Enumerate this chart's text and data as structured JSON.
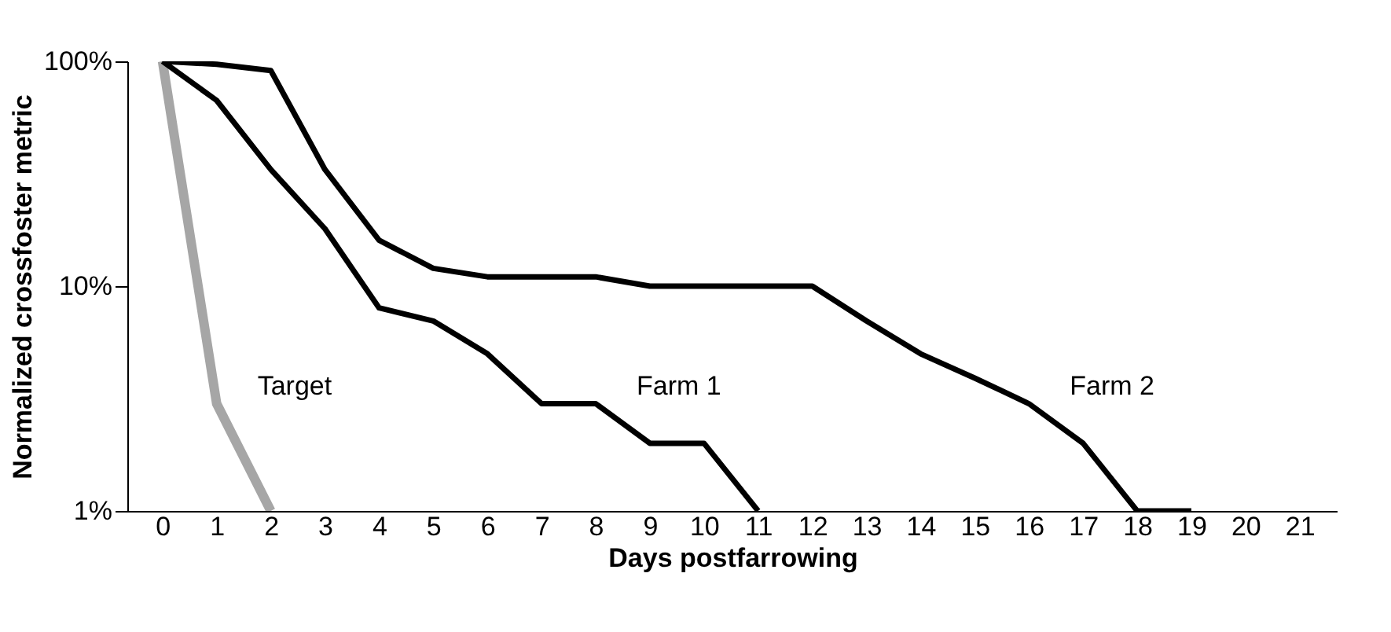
{
  "chart_data": {
    "type": "line",
    "xlabel": "Days postfarrowing",
    "ylabel": "Normalized crossfoster metric",
    "log": true,
    "xlim": [
      -0.65,
      21.7
    ],
    "xticks": [
      0,
      1,
      2,
      3,
      4,
      5,
      6,
      7,
      8,
      9,
      10,
      11,
      12,
      13,
      14,
      15,
      16,
      17,
      18,
      19,
      20,
      21
    ],
    "ylim": [
      1,
      100
    ],
    "yticks": [
      {
        "value": 1,
        "label": "1%"
      },
      {
        "value": 10,
        "label": "10%"
      },
      {
        "value": 100,
        "label": "100%"
      }
    ],
    "line_style": "solid",
    "marker": "none",
    "series": [
      {
        "name": "Target",
        "color": "#a6a6a6",
        "x": [
          0,
          1,
          2
        ],
        "values": [
          100,
          3,
          1
        ]
      },
      {
        "name": "Farm 1",
        "color": "#000000",
        "x": [
          0,
          1,
          2,
          3,
          4,
          5,
          6,
          7,
          8,
          9,
          10,
          11
        ],
        "values": [
          100,
          67,
          33,
          18,
          8,
          7,
          5,
          3,
          3,
          2,
          2,
          1
        ]
      },
      {
        "name": "Farm 2",
        "color": "#000000",
        "x": [
          0,
          1,
          2,
          3,
          4,
          5,
          6,
          7,
          8,
          9,
          10,
          11,
          12,
          13,
          14,
          15,
          16,
          17,
          18,
          19
        ],
        "values": [
          100,
          97,
          91,
          33,
          16,
          12,
          11,
          11,
          11,
          10,
          10,
          10,
          10,
          7,
          5,
          3.9,
          3,
          2,
          1,
          1
        ]
      }
    ]
  }
}
